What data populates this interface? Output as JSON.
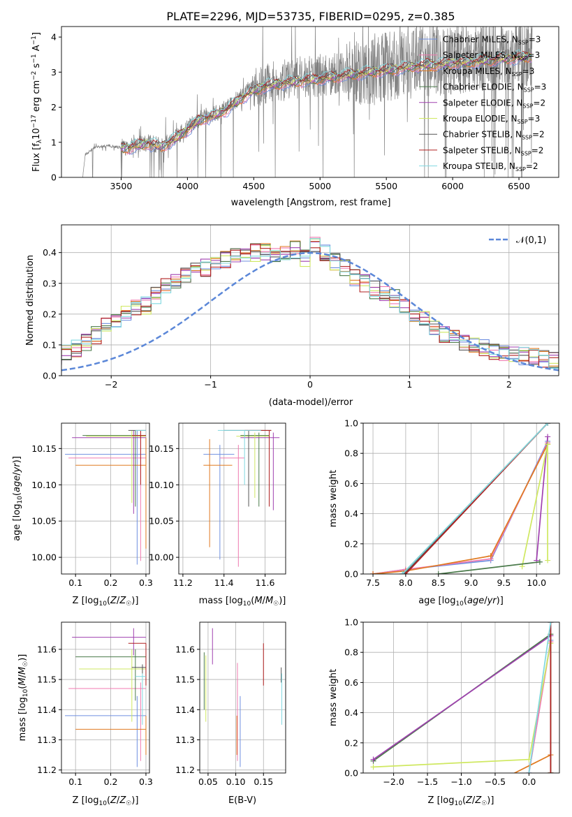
{
  "figure_title": "PLATE=2296, MJD=53735, FIBERID=0295, z=0.385",
  "models": [
    {
      "name": "Chabrier MILES",
      "nssp": "3",
      "color": "#6f8fe0"
    },
    {
      "name": "Salpeter MILES",
      "nssp": "3",
      "color": "#f07ab0"
    },
    {
      "name": "Kroupa MILES",
      "nssp": "3",
      "color": "#e07a20"
    },
    {
      "name": "Chabrier ELODIE",
      "nssp": "3",
      "color": "#4a7a4a"
    },
    {
      "name": "Salpeter ELODIE",
      "nssp": "2",
      "color": "#a040b0"
    },
    {
      "name": "Kroupa ELODIE",
      "nssp": "3",
      "color": "#cfe860"
    },
    {
      "name": "Chabrier STELIB",
      "nssp": "2",
      "color": "#555555"
    },
    {
      "name": "Salpeter STELIB",
      "nssp": "2",
      "color": "#b02020"
    },
    {
      "name": "Kroupa STELIB",
      "nssp": "2",
      "color": "#80d8e0"
    }
  ],
  "chart_data": [
    {
      "id": "spectrum",
      "type": "line",
      "xlabel": "wavelength [Angstrom, rest frame]",
      "ylabel": "Flux [f_λ 10^-17 erg cm^-2 s^-1 A^-1]",
      "xlim": [
        3050,
        6800
      ],
      "ylim": [
        0,
        4.3
      ],
      "xticks": [
        3500,
        4000,
        4500,
        5000,
        5500,
        6000,
        6500
      ],
      "yticks": [
        0,
        1,
        2,
        3,
        4
      ],
      "grid": false,
      "legend": "top-right",
      "data_color": "#808080",
      "data_x_range": [
        3210,
        6600
      ],
      "model_x_range": [
        3500,
        6600
      ],
      "envelope": {
        "x": [
          3210,
          3230,
          3300,
          3400,
          3500,
          3600,
          3700,
          3800,
          3900,
          4000,
          4100,
          4200,
          4300,
          4400,
          4500,
          4600,
          4700,
          4800,
          4900,
          5000,
          5200,
          5400,
          5600,
          5800,
          6000,
          6200,
          6400,
          6600
        ],
        "y": [
          0.0,
          0.65,
          0.85,
          0.9,
          0.85,
          0.9,
          1.0,
          0.9,
          1.1,
          1.4,
          1.7,
          1.8,
          2.0,
          2.3,
          2.55,
          2.7,
          2.75,
          2.8,
          2.85,
          2.9,
          3.0,
          3.1,
          3.2,
          3.3,
          3.35,
          3.4,
          3.5,
          3.55
        ]
      }
    },
    {
      "id": "residuals",
      "type": "histogram",
      "xlabel": "(data-model)/error",
      "ylabel": "Normed distribution",
      "xlim": [
        -2.5,
        2.5
      ],
      "ylim": [
        0,
        0.49
      ],
      "xticks": [
        -2,
        -1,
        0,
        1,
        2
      ],
      "yticks": [
        0.0,
        0.1,
        0.2,
        0.3,
        0.4
      ],
      "grid": true,
      "legend": "top-right",
      "reference_label": "𝒩(0,1)",
      "reference_color": "#5b87d8",
      "bin_width": 0.1,
      "base_bins": [
        0.02,
        0.025,
        0.03,
        0.035,
        0.035,
        0.04,
        0.045,
        0.05,
        0.055,
        0.06,
        0.07,
        0.09,
        0.11,
        0.13,
        0.16,
        0.18,
        0.2,
        0.22,
        0.23,
        0.26,
        0.29,
        0.3,
        0.32,
        0.34,
        0.35,
        0.37,
        0.38,
        0.39,
        0.39,
        0.4,
        0.4,
        0.39,
        0.39,
        0.41,
        0.38,
        0.42,
        0.4,
        0.37,
        0.35,
        0.32,
        0.3,
        0.28,
        0.27,
        0.25,
        0.22,
        0.2,
        0.18,
        0.15,
        0.13,
        0.12,
        0.11,
        0.1,
        0.09,
        0.08,
        0.075,
        0.07,
        0.065,
        0.06,
        0.055,
        0.05,
        0.048,
        0.045,
        0.045,
        0.04,
        0.04,
        0.04,
        0.04,
        0.035,
        0.035,
        0.035
      ],
      "hist_start": -3.5
    },
    {
      "id": "age_vs_Z",
      "type": "errorbar",
      "xlabel": "Z [log10(Z/Z⊙)]",
      "ylabel": "age  [log10(age/yr)]",
      "xlim": [
        0.06,
        0.31
      ],
      "ylim": [
        9.977,
        10.185
      ],
      "xticks": [
        0.1,
        0.2,
        0.3
      ],
      "yticks": [
        10.0,
        10.05,
        10.1,
        10.15
      ],
      "grid": true,
      "points": [
        {
          "x": 0.275,
          "y": 10.142,
          "xlo": 0.07,
          "xhi": 0.3,
          "ylo": 9.99,
          "yhi": 10.175,
          "model": 0
        },
        {
          "x": 0.285,
          "y": 10.137,
          "xlo": 0.08,
          "xhi": 0.3,
          "ylo": 9.995,
          "yhi": 10.175,
          "model": 1
        },
        {
          "x": 0.3,
          "y": 10.127,
          "xlo": 0.1,
          "xhi": 0.3,
          "ylo": 10.012,
          "yhi": 10.165,
          "model": 2
        },
        {
          "x": 0.27,
          "y": 10.168,
          "xlo": 0.12,
          "xhi": 0.3,
          "ylo": 10.07,
          "yhi": 10.175,
          "model": 3
        },
        {
          "x": 0.265,
          "y": 10.165,
          "xlo": 0.09,
          "xhi": 0.3,
          "ylo": 10.06,
          "yhi": 10.175,
          "model": 4
        },
        {
          "x": 0.26,
          "y": 10.167,
          "xlo": 0.13,
          "xhi": 0.3,
          "ylo": 10.075,
          "yhi": 10.175,
          "model": 5
        },
        {
          "x": 0.29,
          "y": 10.175,
          "xlo": 0.25,
          "xhi": 0.3,
          "ylo": 10.175,
          "yhi": 10.175,
          "model": 6
        },
        {
          "x": 0.285,
          "y": 10.168,
          "xlo": 0.26,
          "xhi": 0.3,
          "ylo": 10.1,
          "yhi": 10.175,
          "model": 7
        },
        {
          "x": 0.29,
          "y": 10.175,
          "xlo": 0.27,
          "xhi": 0.3,
          "ylo": 10.175,
          "yhi": 10.175,
          "model": 8
        }
      ]
    },
    {
      "id": "age_vs_mass",
      "type": "errorbar",
      "xlabel": "mass [log10(M/M⊙)]",
      "xlim": [
        11.18,
        11.7
      ],
      "ylim": [
        9.977,
        10.185
      ],
      "xticks": [
        11.2,
        11.4,
        11.6
      ],
      "yticks": [
        10.0,
        10.05,
        10.1,
        10.15
      ],
      "grid": true,
      "points": [
        {
          "x": 11.38,
          "y": 10.142,
          "xlo": 11.3,
          "xhi": 11.45,
          "ylo": 9.997,
          "yhi": 10.155,
          "model": 0
        },
        {
          "x": 11.47,
          "y": 10.137,
          "xlo": 11.38,
          "xhi": 11.5,
          "ylo": 9.987,
          "yhi": 10.155,
          "model": 1
        },
        {
          "x": 11.33,
          "y": 10.127,
          "xlo": 11.3,
          "xhi": 11.44,
          "ylo": 10.014,
          "yhi": 10.163,
          "model": 2
        },
        {
          "x": 11.57,
          "y": 10.168,
          "xlo": 11.48,
          "xhi": 11.62,
          "ylo": 10.07,
          "yhi": 10.172,
          "model": 3
        },
        {
          "x": 11.64,
          "y": 10.165,
          "xlo": 11.48,
          "xhi": 11.67,
          "ylo": 10.065,
          "yhi": 10.172,
          "model": 4
        },
        {
          "x": 11.55,
          "y": 10.167,
          "xlo": 11.46,
          "xhi": 11.62,
          "ylo": 10.082,
          "yhi": 10.172,
          "model": 5
        },
        {
          "x": 11.52,
          "y": 10.175,
          "xlo": 11.4,
          "xhi": 11.63,
          "ylo": 10.07,
          "yhi": 10.175,
          "model": 6
        },
        {
          "x": 11.62,
          "y": 10.175,
          "xlo": 11.5,
          "xhi": 11.63,
          "ylo": 10.07,
          "yhi": 10.175,
          "model": 7
        },
        {
          "x": 11.5,
          "y": 10.175,
          "xlo": 11.37,
          "xhi": 11.58,
          "ylo": 10.1,
          "yhi": 10.175,
          "model": 8
        }
      ]
    },
    {
      "id": "weight_vs_age",
      "type": "line",
      "xlabel": "age  [log10(age/yr)]",
      "ylabel": "mass weight",
      "xlim": [
        7.35,
        10.35
      ],
      "ylim": [
        0,
        1
      ],
      "xticks": [
        7.5,
        8.0,
        8.5,
        9.0,
        9.5,
        10.0
      ],
      "yticks": [
        0.0,
        0.2,
        0.4,
        0.6,
        0.8,
        1.0
      ],
      "grid": true,
      "series": [
        {
          "model": 0,
          "x": [
            7.5,
            8.0,
            9.3,
            10.17
          ],
          "y": [
            0.0,
            0.03,
            0.09,
            0.88
          ]
        },
        {
          "model": 1,
          "x": [
            7.5,
            8.0,
            9.3,
            10.17
          ],
          "y": [
            0.0,
            0.03,
            0.1,
            0.87
          ]
        },
        {
          "model": 2,
          "x": [
            7.5,
            8.0,
            9.3,
            10.17
          ],
          "y": [
            0.0,
            0.02,
            0.12,
            0.86
          ]
        },
        {
          "model": 3,
          "x": [
            7.95,
            10.17
          ],
          "y": [
            0.0,
            1.0
          ]
        },
        {
          "model": 4,
          "x": [
            10.0,
            10.17
          ],
          "y": [
            0.09,
            0.91
          ]
        },
        {
          "model": 5,
          "x": [
            9.78,
            10.17,
            10.17
          ],
          "y": [
            0.05,
            0.86,
            0.09
          ]
        },
        {
          "model": 6,
          "x": [
            7.98,
            10.17
          ],
          "y": [
            0.0,
            1.0
          ]
        },
        {
          "model": 7,
          "x": [
            8.0,
            10.17
          ],
          "y": [
            0.0,
            1.0
          ]
        },
        {
          "model": 8,
          "x": [
            7.95,
            10.17
          ],
          "y": [
            0.0,
            1.0
          ]
        },
        {
          "model": 3,
          "x": [
            8.5,
            10.05
          ],
          "y": [
            0.0,
            0.08
          ]
        }
      ]
    },
    {
      "id": "mass_vs_Z",
      "type": "errorbar",
      "xlabel": "Z [log10(Z/Z⊙)]",
      "ylabel": "mass [log10(M/M⊙)]",
      "xlim": [
        0.06,
        0.31
      ],
      "ylim": [
        11.19,
        11.69
      ],
      "xticks": [
        0.1,
        0.2,
        0.3
      ],
      "yticks": [
        11.2,
        11.3,
        11.4,
        11.5,
        11.6
      ],
      "grid": true,
      "points": [
        {
          "x": 0.275,
          "y": 11.38,
          "xlo": 0.07,
          "xhi": 0.3,
          "ylo": 11.21,
          "yhi": 11.445,
          "model": 0
        },
        {
          "x": 0.285,
          "y": 11.47,
          "xlo": 0.08,
          "xhi": 0.3,
          "ylo": 11.23,
          "yhi": 11.49,
          "model": 1
        },
        {
          "x": 0.3,
          "y": 11.335,
          "xlo": 0.1,
          "xhi": 0.3,
          "ylo": 11.25,
          "yhi": 11.38,
          "model": 2
        },
        {
          "x": 0.27,
          "y": 11.575,
          "xlo": 0.1,
          "xhi": 0.3,
          "ylo": 11.43,
          "yhi": 11.6,
          "model": 3
        },
        {
          "x": 0.265,
          "y": 11.64,
          "xlo": 0.09,
          "xhi": 0.3,
          "ylo": 11.58,
          "yhi": 11.67,
          "model": 4
        },
        {
          "x": 0.26,
          "y": 11.535,
          "xlo": 0.11,
          "xhi": 0.3,
          "ylo": 11.36,
          "yhi": 11.6,
          "model": 5
        },
        {
          "x": 0.29,
          "y": 11.54,
          "xlo": 0.26,
          "xhi": 0.3,
          "ylo": 11.52,
          "yhi": 11.55,
          "model": 6
        },
        {
          "x": 0.3,
          "y": 11.62,
          "xlo": 0.25,
          "xhi": 0.3,
          "ylo": 11.48,
          "yhi": 11.62,
          "model": 7
        },
        {
          "x": 0.29,
          "y": 11.51,
          "xlo": 0.27,
          "xhi": 0.3,
          "ylo": 11.35,
          "yhi": 11.52,
          "model": 8
        }
      ]
    },
    {
      "id": "mass_vs_ebv",
      "type": "errorbar",
      "xlabel": "E(B-V)",
      "xlim": [
        0.035,
        0.19
      ],
      "ylim": [
        11.19,
        11.69
      ],
      "xticks": [
        0.05,
        0.1,
        0.15
      ],
      "yticks": [
        11.2,
        11.3,
        11.4,
        11.5,
        11.6
      ],
      "grid": true,
      "points": [
        {
          "x": 0.108,
          "y": 11.38,
          "ylo": 11.21,
          "yhi": 11.445,
          "model": 0
        },
        {
          "x": 0.103,
          "y": 11.47,
          "ylo": 11.23,
          "yhi": 11.555,
          "model": 1
        },
        {
          "x": 0.102,
          "y": 11.335,
          "ylo": 11.25,
          "yhi": 11.38,
          "model": 2
        },
        {
          "x": 0.043,
          "y": 11.575,
          "ylo": 11.4,
          "yhi": 11.59,
          "model": 3
        },
        {
          "x": 0.058,
          "y": 11.64,
          "ylo": 11.55,
          "yhi": 11.67,
          "model": 4
        },
        {
          "x": 0.046,
          "y": 11.535,
          "ylo": 11.36,
          "yhi": 11.58,
          "model": 5
        },
        {
          "x": 0.182,
          "y": 11.54,
          "ylo": 11.49,
          "yhi": 11.54,
          "model": 6
        },
        {
          "x": 0.15,
          "y": 11.62,
          "ylo": 11.48,
          "yhi": 11.62,
          "model": 7
        },
        {
          "x": 0.183,
          "y": 11.51,
          "ylo": 11.35,
          "yhi": 11.52,
          "model": 8
        }
      ]
    },
    {
      "id": "weight_vs_Z",
      "type": "line",
      "xlabel": "Z [log10(Z/Z⊙)]",
      "ylabel": "mass weight",
      "xlim": [
        -2.45,
        0.45
      ],
      "ylim": [
        0,
        1
      ],
      "xticks": [
        -2.0,
        -1.5,
        -1.0,
        -0.5,
        0.0
      ],
      "yticks": [
        0.0,
        0.2,
        0.4,
        0.6,
        0.8,
        1.0
      ],
      "grid": true,
      "series": [
        {
          "model": 0,
          "x": [
            0.0,
            0.32
          ],
          "y": [
            0.0,
            0.88
          ]
        },
        {
          "model": 1,
          "x": [
            0.0,
            0.32
          ],
          "y": [
            0.0,
            0.87
          ]
        },
        {
          "model": 2,
          "x": [
            -0.3,
            0.32
          ],
          "y": [
            -0.02,
            0.12
          ]
        },
        {
          "model": 3,
          "x": [
            -2.3,
            0.32,
            0.32
          ],
          "y": [
            0.08,
            0.92,
            0.0
          ]
        },
        {
          "model": 4,
          "x": [
            -2.3,
            0.32
          ],
          "y": [
            0.09,
            0.91
          ]
        },
        {
          "model": 5,
          "x": [
            -2.3,
            0.0,
            0.32,
            0.32
          ],
          "y": [
            0.04,
            0.09,
            0.86,
            0.0
          ]
        },
        {
          "model": 6,
          "x": [
            0.32,
            0.32
          ],
          "y": [
            0.0,
            1.0
          ]
        },
        {
          "model": 7,
          "x": [
            0.32,
            0.32
          ],
          "y": [
            0.0,
            1.0
          ]
        },
        {
          "model": 8,
          "x": [
            0.0,
            0.32
          ],
          "y": [
            0.0,
            1.0
          ]
        }
      ]
    }
  ]
}
